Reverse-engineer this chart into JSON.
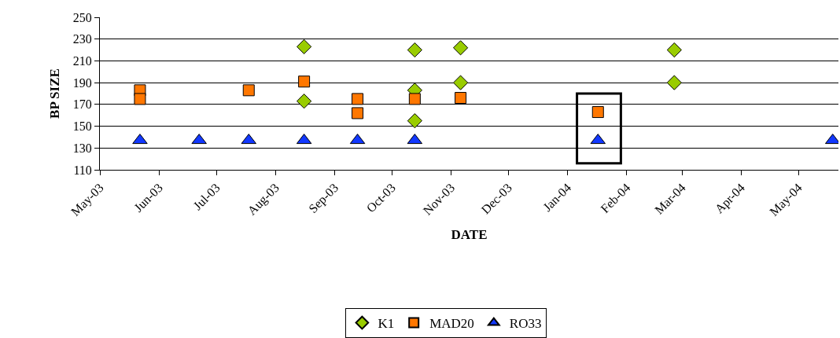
{
  "chart_data": {
    "type": "scatter",
    "xlabel": "DATE",
    "ylabel": "BP SIZE",
    "xlim": [
      "2003-05-01",
      "2004-05-22"
    ],
    "xticks": [
      {
        "value": "2003-05-01",
        "label": "May-03"
      },
      {
        "value": "2003-06-01",
        "label": "Jun-03"
      },
      {
        "value": "2003-07-01",
        "label": "Jul-03"
      },
      {
        "value": "2003-08-01",
        "label": "Aug-03"
      },
      {
        "value": "2003-09-01",
        "label": "Sep-03"
      },
      {
        "value": "2003-10-01",
        "label": "Oct-03"
      },
      {
        "value": "2003-11-01",
        "label": "Nov-03"
      },
      {
        "value": "2003-12-01",
        "label": "Dec-03"
      },
      {
        "value": "2004-01-01",
        "label": "Jan-04"
      },
      {
        "value": "2004-02-01",
        "label": "Feb-04"
      },
      {
        "value": "2004-03-01",
        "label": "Mar-04"
      },
      {
        "value": "2004-04-01",
        "label": "Apr-04"
      },
      {
        "value": "2004-05-01",
        "label": "May-04"
      }
    ],
    "ylim": [
      110,
      250
    ],
    "yticks": [
      110,
      130,
      150,
      170,
      190,
      210,
      230,
      250
    ],
    "grid": "y",
    "legend": "bottom",
    "series": [
      {
        "name": "K1",
        "color": "#99cc00",
        "marker": "diamond",
        "x": [
          "2003-08-16",
          "2003-08-16",
          "2003-10-13",
          "2003-10-13",
          "2003-10-13",
          "2003-11-06",
          "2003-11-06",
          "2004-02-26",
          "2004-02-26"
        ],
        "values": [
          223,
          173,
          220,
          183,
          155,
          222,
          190,
          220,
          190
        ]
      },
      {
        "name": "MAD20",
        "color": "#ff7700",
        "marker": "square",
        "x": [
          "2003-05-22",
          "2003-05-22",
          "2003-07-18",
          "2003-08-16",
          "2003-09-13",
          "2003-09-13",
          "2003-10-13",
          "2003-11-06",
          "2004-01-17"
        ],
        "values": [
          183,
          175,
          183,
          191,
          175,
          162,
          175,
          176,
          163
        ]
      },
      {
        "name": "RO33",
        "color": "#1238ff",
        "marker": "triangle",
        "x": [
          "2003-05-22",
          "2003-06-22",
          "2003-07-18",
          "2003-08-16",
          "2003-09-13",
          "2003-10-13",
          "2004-01-17",
          "2004-05-19"
        ],
        "values": [
          137,
          137,
          137,
          137,
          137,
          137,
          137,
          137
        ]
      }
    ]
  }
}
